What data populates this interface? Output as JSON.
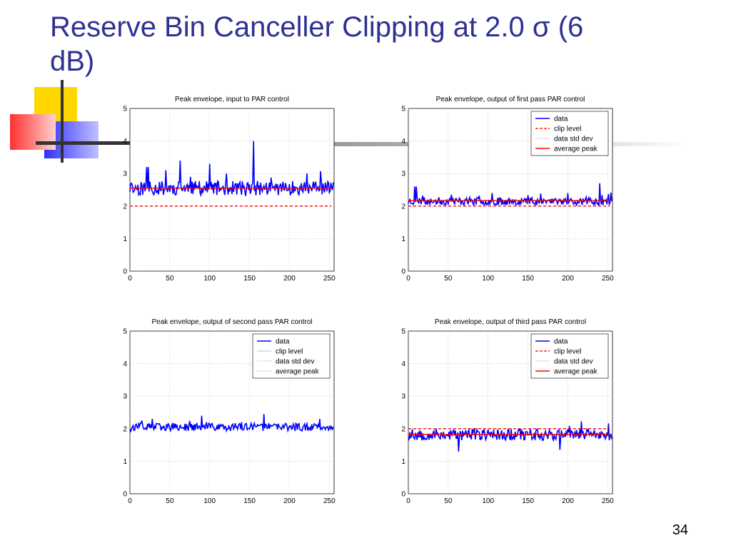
{
  "slide": {
    "title": "Reserve Bin Canceller Clipping at 2.0 σ (6 dB)",
    "page_number": "34"
  },
  "colors": {
    "title": "#2E3192",
    "data": "#0000FF",
    "clip": "#FF0000",
    "avg": "#FF0000",
    "stddev": "#CCCCCC",
    "accent_bar": "#C0C0C0"
  },
  "chart_data": [
    {
      "type": "line",
      "title": "Peak envelope, input to PAR control",
      "xlim": [
        0,
        256
      ],
      "ylim": [
        0,
        5
      ],
      "xticks": [
        0,
        50,
        100,
        150,
        200,
        250
      ],
      "yticks": [
        0,
        1,
        2,
        3,
        4,
        5
      ],
      "grid": true,
      "legend": null,
      "clip_level": 2.0,
      "average_peak": 2.55,
      "data_mean": 2.55,
      "data_spread": 0.22,
      "spikes": [
        [
          21,
          3.2
        ],
        [
          23,
          3.2
        ],
        [
          45,
          3.1
        ],
        [
          63,
          3.4
        ],
        [
          100,
          3.3
        ],
        [
          155,
          4.0
        ],
        [
          222,
          3.0
        ]
      ],
      "seed": 11
    },
    {
      "type": "line",
      "title": "Peak envelope, output of first pass PAR control",
      "xlim": [
        0,
        256
      ],
      "ylim": [
        0,
        5
      ],
      "xticks": [
        0,
        50,
        100,
        150,
        200,
        250
      ],
      "yticks": [
        0,
        1,
        2,
        3,
        4,
        5
      ],
      "grid": true,
      "legend": {
        "position": "top-right",
        "entries": [
          "data",
          "clip level",
          "data std dev",
          "average peak"
        ]
      },
      "clip_level": 2.0,
      "average_peak": 2.17,
      "data_mean": 2.15,
      "data_spread": 0.12,
      "spikes": [
        [
          8,
          2.6
        ],
        [
          10,
          2.6
        ],
        [
          105,
          2.4
        ],
        [
          200,
          2.4
        ],
        [
          240,
          2.7
        ]
      ],
      "seed": 23
    },
    {
      "type": "line",
      "title": "Peak envelope, output of second pass PAR control",
      "xlim": [
        0,
        256
      ],
      "ylim": [
        0,
        5
      ],
      "xticks": [
        0,
        50,
        100,
        150,
        200,
        250
      ],
      "yticks": [
        0,
        1,
        2,
        3,
        4,
        5
      ],
      "grid": true,
      "legend": {
        "position": "top-right",
        "entries": [
          "data",
          "clip level",
          "data std dev",
          "average peak"
        ]
      },
      "clip_level": null,
      "average_peak": null,
      "data_mean": 2.05,
      "data_spread": 0.12,
      "spikes": [
        [
          28,
          2.3
        ],
        [
          90,
          2.4
        ],
        [
          168,
          2.45
        ],
        [
          238,
          2.3
        ]
      ],
      "seed": 37
    },
    {
      "type": "line",
      "title": "Peak envelope, output of third pass PAR control",
      "xlim": [
        0,
        256
      ],
      "ylim": [
        0,
        5
      ],
      "xticks": [
        0,
        50,
        100,
        150,
        200,
        250
      ],
      "yticks": [
        0,
        1,
        2,
        3,
        4,
        5
      ],
      "grid": true,
      "legend": {
        "position": "top-right",
        "entries": [
          "data",
          "clip level",
          "data std dev",
          "average peak"
        ]
      },
      "clip_level": 2.0,
      "average_peak": 1.82,
      "data_mean": 1.82,
      "data_spread": 0.18,
      "spikes": [
        [
          63,
          1.3
        ],
        [
          190,
          1.35
        ]
      ],
      "seed": 53
    }
  ]
}
